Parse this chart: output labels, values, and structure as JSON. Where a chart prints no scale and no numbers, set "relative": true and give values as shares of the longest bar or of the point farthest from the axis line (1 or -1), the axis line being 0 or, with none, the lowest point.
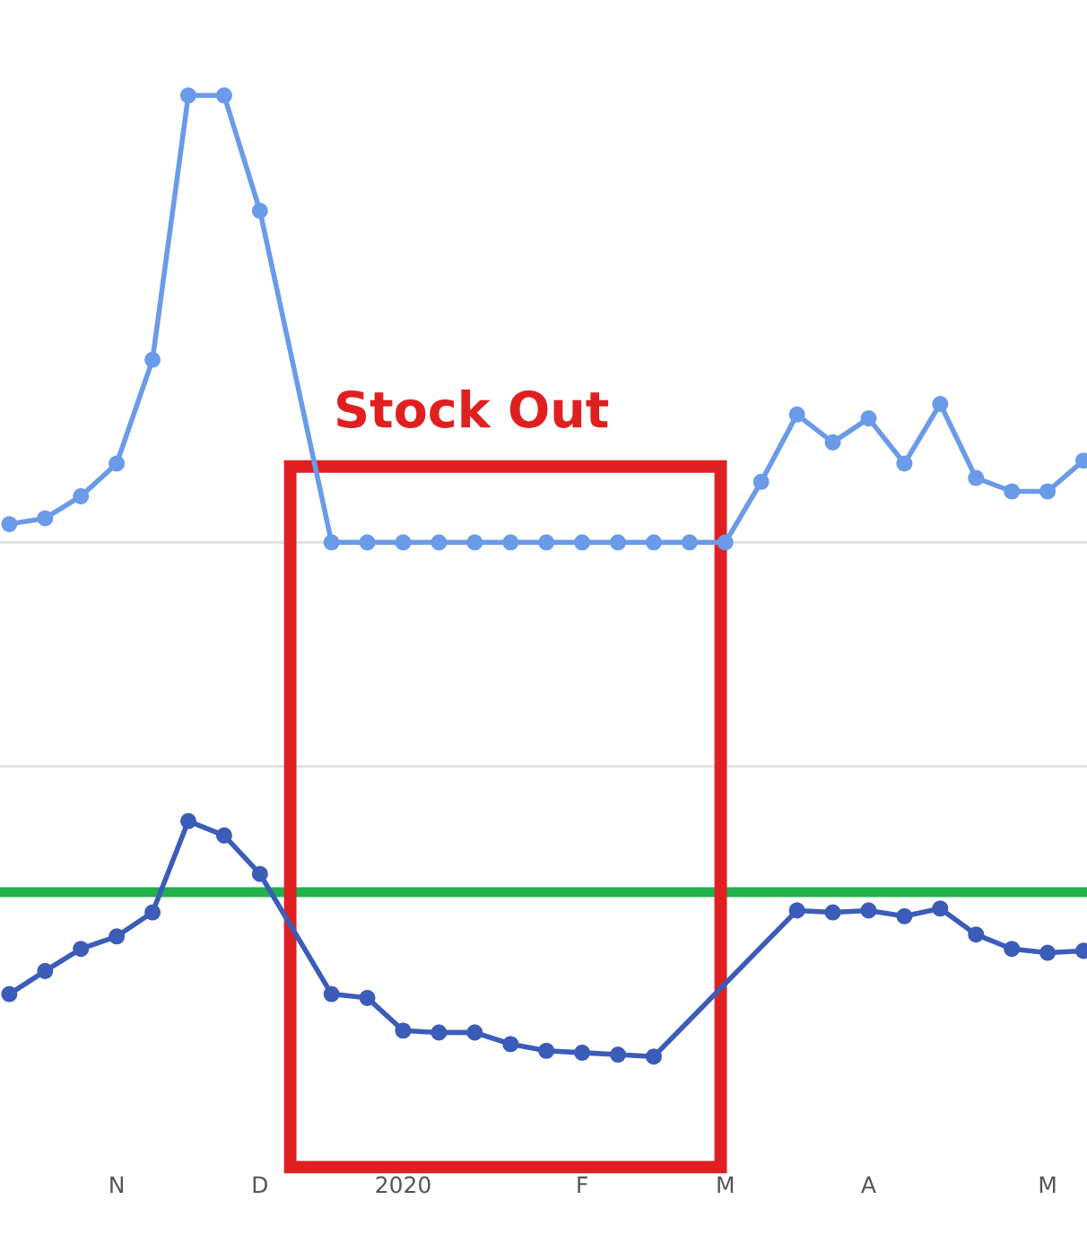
{
  "chart_data": {
    "type": "line",
    "relative": true,
    "marker": "circle",
    "line_style": "solid",
    "grid": false,
    "categories": [
      null,
      null,
      null,
      "N",
      null,
      null,
      null,
      "D",
      null,
      null,
      null,
      "2020",
      null,
      null,
      null,
      null,
      "F",
      null,
      null,
      null,
      "M",
      null,
      null,
      null,
      "A",
      null,
      null,
      null,
      null,
      "M",
      null
    ],
    "series": [
      {
        "color": "#6a9be8",
        "values": [
          0.554,
          0.56,
          0.583,
          0.617,
          0.725,
          1.0,
          1.0,
          0.88,
          null,
          0.535,
          0.535,
          0.535,
          0.535,
          0.535,
          0.535,
          0.535,
          0.535,
          0.535,
          0.535,
          0.535,
          0.535,
          0.598,
          0.668,
          0.639,
          0.664,
          0.617,
          0.679,
          0.602,
          0.588,
          0.588,
          0.62
        ]
      },
      {
        "color": "#3b5cb8",
        "values": [
          0.065,
          0.089,
          0.112,
          0.125,
          0.15,
          0.245,
          0.23,
          0.19,
          null,
          0.065,
          0.061,
          0.027,
          0.025,
          0.025,
          0.013,
          0.006,
          0.004,
          0.002,
          0.0,
          null,
          null,
          null,
          0.152,
          0.15,
          0.152,
          0.146,
          0.154,
          0.127,
          0.112,
          0.108,
          0.11
        ]
      }
    ],
    "ref_lines": [
      {
        "axis": "y",
        "value": 0.535,
        "color": "#e0e0e0"
      },
      {
        "axis": "y",
        "value": 0.302,
        "color": "#e0e0e0"
      },
      {
        "axis": "y",
        "value": 0.171,
        "color": "#22b14c"
      }
    ],
    "annotations": [
      "Stock Out"
    ]
  }
}
